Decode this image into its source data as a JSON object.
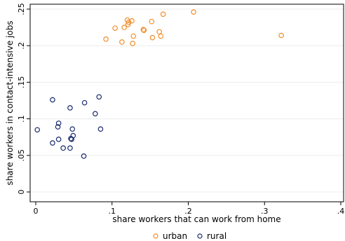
{
  "chart_data": {
    "type": "scatter",
    "title": "",
    "xlabel": "share workers that can work from home",
    "ylabel": "share workers in contact-intensive jobs",
    "xlim": [
      0,
      0.4
    ],
    "ylim": [
      0,
      0.25
    ],
    "x_ticks": [
      0,
      0.1,
      0.2,
      0.3,
      0.4
    ],
    "x_tick_labels": [
      "0",
      ".1",
      ".2",
      ".3",
      ".4"
    ],
    "y_ticks": [
      0,
      0.05,
      0.1,
      0.15,
      0.2,
      0.25
    ],
    "y_tick_labels": [
      "0",
      ".05",
      ".1",
      ".15",
      ".2",
      ".25"
    ],
    "grid": true,
    "legend_position": "bottom-center",
    "series": [
      {
        "name": "urban",
        "color": "#f28e2b",
        "marker": "hollow-circle",
        "points": [
          [
            0.092,
            0.209
          ],
          [
            0.104,
            0.224
          ],
          [
            0.113,
            0.205
          ],
          [
            0.116,
            0.225
          ],
          [
            0.12,
            0.235
          ],
          [
            0.121,
            0.229
          ],
          [
            0.122,
            0.232
          ],
          [
            0.126,
            0.234
          ],
          [
            0.127,
            0.203
          ],
          [
            0.128,
            0.213
          ],
          [
            0.141,
            0.222
          ],
          [
            0.142,
            0.221
          ],
          [
            0.152,
            0.233
          ],
          [
            0.153,
            0.211
          ],
          [
            0.162,
            0.219
          ],
          [
            0.164,
            0.213
          ],
          [
            0.167,
            0.243
          ],
          [
            0.207,
            0.246
          ],
          [
            0.322,
            0.214
          ]
        ]
      },
      {
        "name": "rural",
        "color": "#1a2b6d",
        "marker": "hollow-circle",
        "points": [
          [
            0.002,
            0.085
          ],
          [
            0.022,
            0.126
          ],
          [
            0.022,
            0.067
          ],
          [
            0.029,
            0.089
          ],
          [
            0.03,
            0.094
          ],
          [
            0.03,
            0.072
          ],
          [
            0.036,
            0.06
          ],
          [
            0.045,
            0.06
          ],
          [
            0.045,
            0.115
          ],
          [
            0.046,
            0.073
          ],
          [
            0.047,
            0.072
          ],
          [
            0.048,
            0.086
          ],
          [
            0.049,
            0.077
          ],
          [
            0.063,
            0.049
          ],
          [
            0.064,
            0.122
          ],
          [
            0.078,
            0.107
          ],
          [
            0.083,
            0.13
          ],
          [
            0.085,
            0.086
          ]
        ]
      }
    ]
  }
}
